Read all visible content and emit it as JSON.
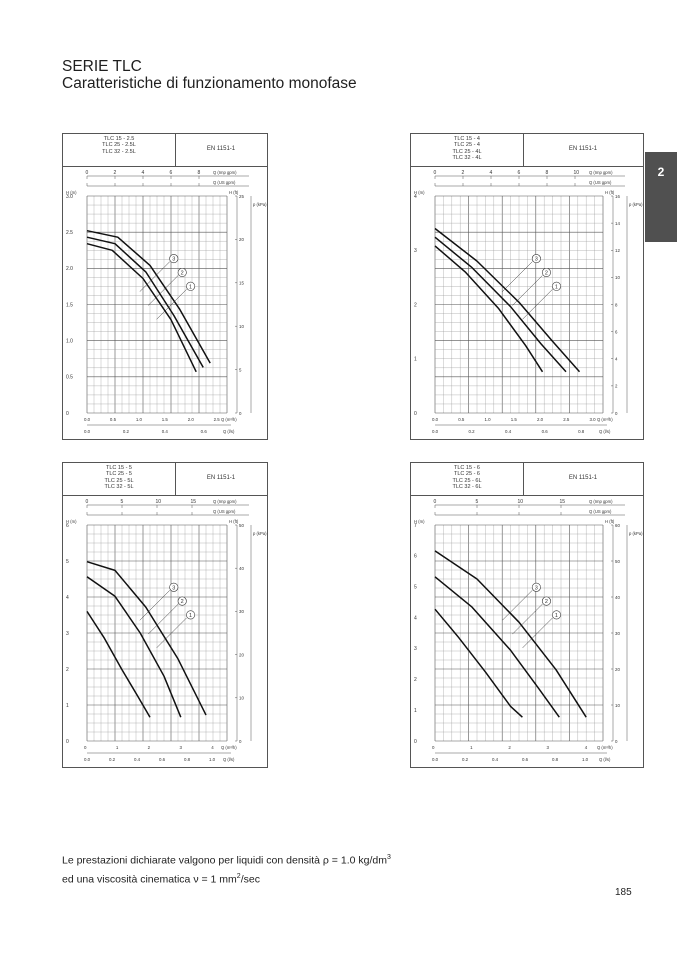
{
  "header": {
    "series_title": "SERIE TLC",
    "subtitle": "Caratteristiche di funzionamento monofase"
  },
  "side_tab": {
    "label": "2"
  },
  "charts": [
    {
      "models": [
        "TLC 15 - 2.5",
        "TLC 25 - 2.5L",
        "TLC 32 - 2.5L"
      ],
      "standard": "EN 1151-1",
      "top_axis_label": "Q (Imp gpm)",
      "top_axis2_label": "Q (US gpm)",
      "left_axis_label": "H (m)",
      "right_axis_label": "H (ft)",
      "right_axis2_label": "p (kPa)",
      "bottom_axis_label": "Q (m³/h)",
      "bottom_axis2_label": "Q (l/s)",
      "left_ticks": [
        "3.0",
        "2.5",
        "2.0",
        "1.5",
        "1.0",
        "0.5",
        "0"
      ],
      "bottom_ticks": [
        "0.0",
        "0.5",
        "1.0",
        "1.5",
        "2.0",
        "2.5"
      ],
      "bottom2_ticks": [
        "0.0",
        "0.2",
        "0.4",
        "0.6"
      ],
      "top_ticks": [
        "0",
        "2",
        "4",
        "6",
        "8"
      ],
      "right_ticks": [
        "25",
        "20",
        "15",
        "10",
        "5",
        "0"
      ],
      "curve_labels": [
        "3",
        "2",
        "1"
      ]
    },
    {
      "models": [
        "TLC 15 - 4",
        "TLC 25 - 4",
        "TLC 25 - 4L",
        "TLC 32 - 4L"
      ],
      "standard": "EN 1151-1",
      "top_axis_label": "Q (Imp gpm)",
      "top_axis2_label": "Q (US gpm)",
      "left_axis_label": "H (m)",
      "right_axis_label": "H (ft)",
      "right_axis2_label": "p (kPa)",
      "bottom_axis_label": "Q (m³/h)",
      "bottom_axis2_label": "Q (l/s)",
      "left_ticks": [
        "4",
        "3",
        "2",
        "1",
        "0"
      ],
      "bottom_ticks": [
        "0.0",
        "0.5",
        "1.0",
        "1.5",
        "2.0",
        "2.5",
        "3.0"
      ],
      "bottom2_ticks": [
        "0.0",
        "0.2",
        "0.4",
        "0.6",
        "0.8"
      ],
      "top_ticks": [
        "0",
        "2",
        "4",
        "6",
        "8",
        "10"
      ],
      "right_ticks": [
        "16",
        "14",
        "12",
        "10",
        "8",
        "6",
        "4",
        "2",
        "0"
      ],
      "curve_labels": [
        "3",
        "2",
        "1"
      ]
    },
    {
      "models": [
        "TLC 15 - 5",
        "TLC 25 - 5",
        "TLC 25 - 5L",
        "TLC 32 - 5L"
      ],
      "standard": "EN 1151-1",
      "top_axis_label": "Q (Imp gpm)",
      "top_axis2_label": "Q (US gpm)",
      "left_axis_label": "H (m)",
      "right_axis_label": "H (ft)",
      "right_axis2_label": "p (kPa)",
      "bottom_axis_label": "Q (m³/h)",
      "bottom_axis2_label": "Q (l/s)",
      "left_ticks": [
        "6",
        "5",
        "4",
        "3",
        "2",
        "1",
        "0"
      ],
      "bottom_ticks": [
        "0",
        "1",
        "2",
        "3",
        "4"
      ],
      "bottom2_ticks": [
        "0.0",
        "0.2",
        "0.4",
        "0.6",
        "0.8",
        "1.0"
      ],
      "top_ticks": [
        "0",
        "5",
        "10",
        "15"
      ],
      "right_ticks": [
        "50",
        "40",
        "30",
        "20",
        "10",
        "0"
      ],
      "curve_labels": [
        "3",
        "2",
        "1"
      ]
    },
    {
      "models": [
        "TLC 15 - 6",
        "TLC 25 - 6",
        "TLC 25 - 6L",
        "TLC 32 - 6L"
      ],
      "standard": "EN 1151-1",
      "top_axis_label": "Q (Imp gpm)",
      "top_axis2_label": "Q (US gpm)",
      "left_axis_label": "H (m)",
      "right_axis_label": "H (ft)",
      "right_axis2_label": "p (kPa)",
      "bottom_axis_label": "Q (m³/h)",
      "bottom_axis2_label": "Q (l/s)",
      "left_ticks": [
        "7",
        "6",
        "5",
        "4",
        "3",
        "2",
        "1",
        "0"
      ],
      "bottom_ticks": [
        "0",
        "1",
        "2",
        "3",
        "4"
      ],
      "bottom2_ticks": [
        "0.0",
        "0.2",
        "0.4",
        "0.6",
        "0.8",
        "1.0"
      ],
      "top_ticks": [
        "0",
        "5",
        "10",
        "15"
      ],
      "right_ticks": [
        "60",
        "50",
        "40",
        "30",
        "20",
        "10",
        "0"
      ],
      "curve_labels": [
        "3",
        "2",
        "1"
      ]
    }
  ],
  "footnote": {
    "line1": "Le prestazioni dichiarate valgono per liquidi con densità ρ = 1.0 kg/dm",
    "line1_sup": "3",
    "line2_pre": "ed una viscosità cinematica ν = 1 mm",
    "line2_sup": "2",
    "line2_post": "/sec"
  },
  "page_number": "185"
}
